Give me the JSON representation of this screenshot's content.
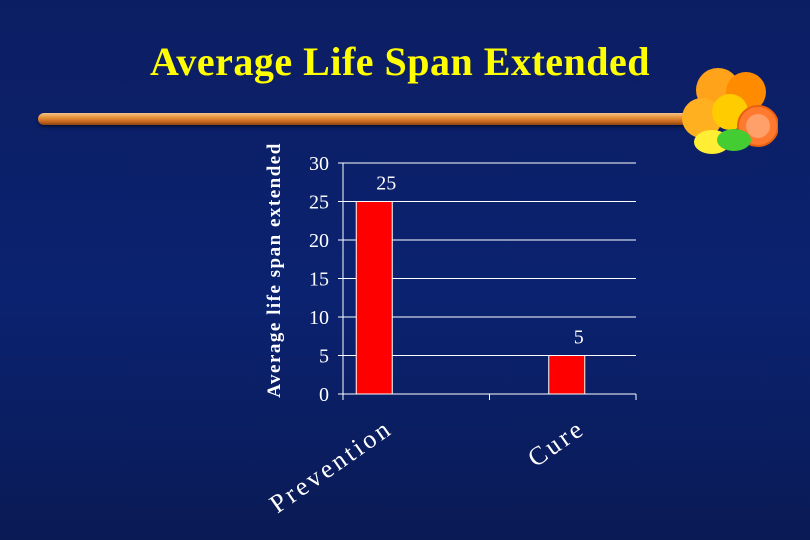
{
  "slide": {
    "title": "Average Life Span Extended"
  },
  "chart_data": {
    "type": "bar",
    "title": "",
    "xlabel": "",
    "ylabel": "Average life span extended",
    "categories": [
      "Prevention",
      "Cure"
    ],
    "values": [
      25,
      5
    ],
    "data_labels": [
      "25",
      "5"
    ],
    "ylim": [
      0,
      30
    ],
    "yticks": [
      0,
      5,
      10,
      15,
      20,
      25,
      30
    ],
    "grid": true,
    "bar_color": "#ff0000"
  },
  "colors": {
    "background": "#0b2270",
    "title": "#ffff00",
    "rule": "#e8953e"
  }
}
